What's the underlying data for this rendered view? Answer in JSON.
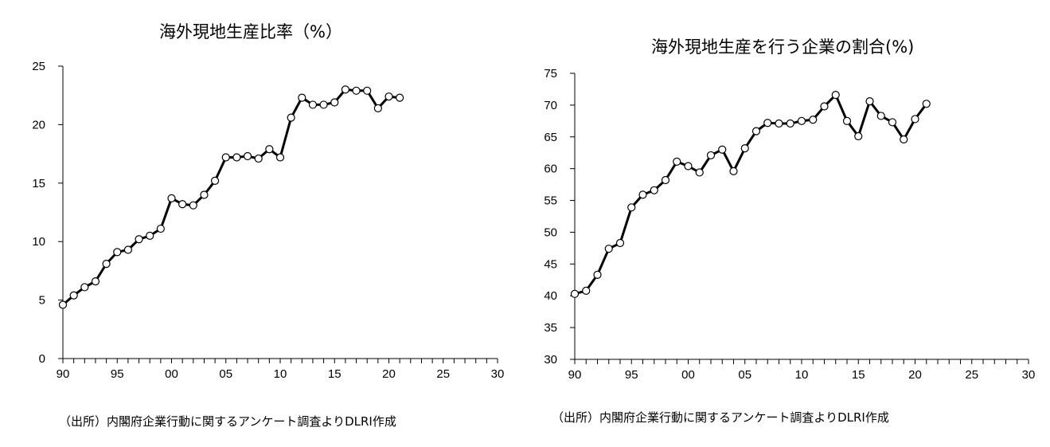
{
  "chart_data": [
    {
      "type": "line",
      "title": "海外現地生産比率（%）",
      "source": "（出所）内閣府企業行動に関するアンケート調査よりDLRI作成",
      "xlabel": "",
      "ylabel": "",
      "xlim": [
        90,
        130
      ],
      "ylim": [
        0,
        25
      ],
      "x_ticks": [
        90,
        95,
        100,
        105,
        110,
        115,
        120,
        125,
        130
      ],
      "x_tick_labels": [
        "90",
        "95",
        "00",
        "05",
        "10",
        "15",
        "20",
        "25",
        "30"
      ],
      "y_ticks": [
        0,
        5,
        10,
        15,
        20,
        25
      ],
      "y_tick_labels": [
        "0",
        "5",
        "10",
        "15",
        "20",
        "25"
      ],
      "grid": false,
      "legend": "none",
      "series": [
        {
          "x": [
            90,
            91,
            92,
            93,
            94,
            95,
            96,
            97,
            98,
            99,
            100,
            101,
            102,
            103,
            104,
            105,
            106,
            107,
            108,
            109,
            110,
            111,
            112,
            113,
            114,
            115,
            116,
            117,
            118,
            119,
            120,
            121
          ],
          "values": [
            4.6,
            5.4,
            6.1,
            6.6,
            8.1,
            9.1,
            9.3,
            10.2,
            10.5,
            11.1,
            13.7,
            13.2,
            13.1,
            14.0,
            15.2,
            17.2,
            17.2,
            17.3,
            17.1,
            17.9,
            17.2,
            20.6,
            22.3,
            21.7,
            21.7,
            21.9,
            23.0,
            22.9,
            22.9,
            21.4,
            22.4,
            22.3
          ]
        }
      ]
    },
    {
      "type": "line",
      "title": "海外現地生産を行う企業の割合(%)",
      "source": "（出所）内閣府企業行動に関するアンケート調査よりDLRI作成",
      "xlabel": "",
      "ylabel": "",
      "xlim": [
        90,
        130
      ],
      "ylim": [
        30,
        75
      ],
      "x_ticks": [
        90,
        95,
        100,
        105,
        110,
        115,
        120,
        125,
        130
      ],
      "x_tick_labels": [
        "90",
        "95",
        "00",
        "05",
        "10",
        "15",
        "20",
        "25",
        "30"
      ],
      "y_ticks": [
        30,
        35,
        40,
        45,
        50,
        55,
        60,
        65,
        70,
        75
      ],
      "y_tick_labels": [
        "30",
        "35",
        "40",
        "45",
        "50",
        "55",
        "60",
        "65",
        "70",
        "75"
      ],
      "grid": false,
      "legend": "none",
      "series": [
        {
          "x": [
            90,
            91,
            92,
            93,
            94,
            95,
            96,
            97,
            98,
            99,
            100,
            101,
            102,
            103,
            104,
            105,
            106,
            107,
            108,
            109,
            110,
            111,
            112,
            113,
            114,
            115,
            116,
            117,
            118,
            119,
            120,
            121
          ],
          "values": [
            40.3,
            40.8,
            43.3,
            47.4,
            48.3,
            53.9,
            55.9,
            56.6,
            58.2,
            61.1,
            60.4,
            59.4,
            62.1,
            63.0,
            59.6,
            63.2,
            65.9,
            67.2,
            67.1,
            67.1,
            67.5,
            67.7,
            69.8,
            71.6,
            67.5,
            65.1,
            70.6,
            68.3,
            67.3,
            64.6,
            67.8,
            70.2
          ]
        }
      ]
    }
  ]
}
